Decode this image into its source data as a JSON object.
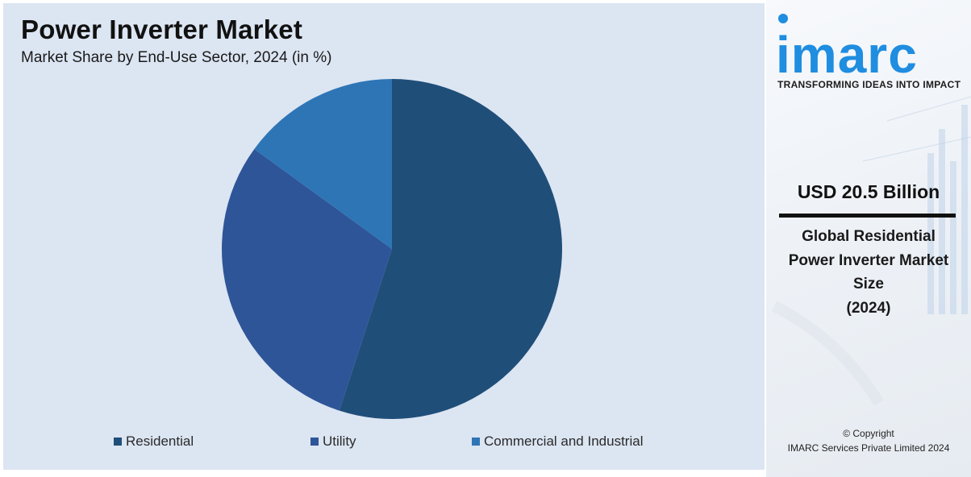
{
  "chart_data": {
    "type": "pie",
    "title": "Power Inverter Market",
    "subtitle": "Market Share by End-Use Sector, 2024 (in %)",
    "categories": [
      "Residential",
      "Utility",
      "Commercial and Industrial"
    ],
    "values": [
      55,
      30,
      15
    ],
    "colors": [
      "#1f4e79",
      "#2e5597",
      "#2e75b6"
    ],
    "legend_position": "bottom"
  },
  "brand": {
    "logo_text": "imarc",
    "tagline": "TRANSFORMING IDEAS INTO IMPACT",
    "logo_color": "#1f8de0"
  },
  "stat": {
    "value": "USD 20.5 Billion",
    "label_lines": [
      "Global Residential",
      "Power Inverter Market",
      "Size",
      "(2024)"
    ]
  },
  "footer": {
    "copyright": "© Copyright",
    "company": "IMARC Services Private Limited 2024"
  }
}
